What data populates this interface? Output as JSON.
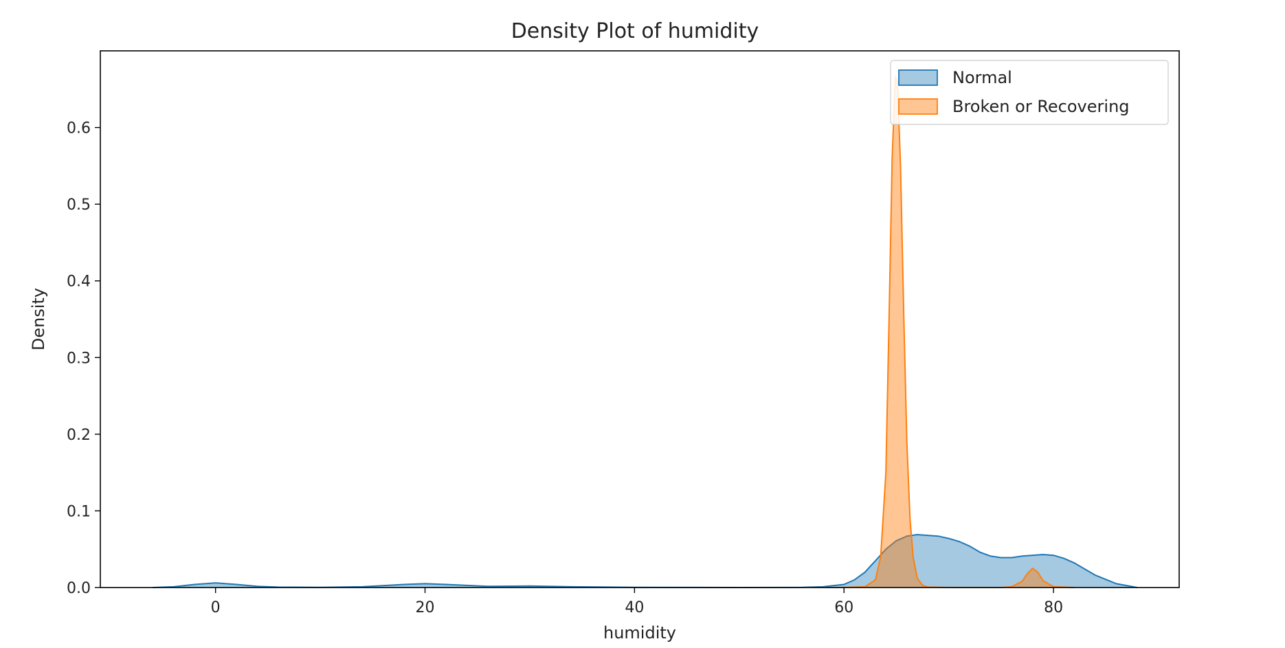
{
  "chart_data": {
    "type": "area",
    "title": "Density Plot of humidity",
    "xlabel": "humidity",
    "ylabel": "Density",
    "xlim": [
      -11,
      92
    ],
    "ylim": [
      0,
      0.7
    ],
    "xticks": [
      0,
      20,
      40,
      60,
      80
    ],
    "yticks": [
      0.0,
      0.1,
      0.2,
      0.3,
      0.4,
      0.5,
      0.6
    ],
    "ytick_labels": [
      "0.0",
      "0.1",
      "0.2",
      "0.3",
      "0.4",
      "0.5",
      "0.6"
    ],
    "grid": false,
    "legend_position": "top-right",
    "series": [
      {
        "name": "Normal",
        "color": "#1f77b4",
        "x": [
          -6,
          -4,
          -2,
          0,
          2,
          4,
          6,
          10,
          14,
          18,
          20,
          22,
          26,
          30,
          34,
          40,
          50,
          56,
          58,
          60,
          61,
          62,
          63,
          64,
          65,
          66,
          67,
          68,
          69,
          70,
          71,
          72,
          73,
          74,
          75,
          76,
          77,
          78,
          79,
          80,
          81,
          82,
          83,
          84,
          86,
          88
        ],
        "y": [
          0.0,
          0.001,
          0.004,
          0.006,
          0.004,
          0.0015,
          0.0005,
          0.0003,
          0.001,
          0.004,
          0.005,
          0.004,
          0.0015,
          0.002,
          0.001,
          0.0003,
          0.0,
          0.0002,
          0.001,
          0.004,
          0.01,
          0.02,
          0.035,
          0.05,
          0.061,
          0.067,
          0.069,
          0.068,
          0.067,
          0.064,
          0.06,
          0.054,
          0.046,
          0.041,
          0.039,
          0.039,
          0.041,
          0.042,
          0.043,
          0.042,
          0.038,
          0.032,
          0.024,
          0.016,
          0.005,
          0.0
        ],
        "fill_opacity": 0.4
      },
      {
        "name": "Broken or Recovering",
        "color": "#ff7f0e",
        "x": [
          57,
          60,
          62,
          63,
          63.5,
          64,
          64.3,
          64.6,
          64.9,
          65.1,
          65.4,
          65.7,
          66,
          66.3,
          66.6,
          67,
          67.5,
          68,
          70,
          72,
          75,
          76,
          77,
          77.5,
          78,
          78.5,
          79,
          80,
          82
        ],
        "y": [
          0.0,
          0.0001,
          0.001,
          0.01,
          0.04,
          0.15,
          0.35,
          0.56,
          0.665,
          0.66,
          0.55,
          0.36,
          0.19,
          0.09,
          0.04,
          0.012,
          0.003,
          0.0005,
          0.0,
          0.0,
          0.0,
          0.001,
          0.008,
          0.018,
          0.025,
          0.02,
          0.009,
          0.001,
          0.0
        ],
        "fill_opacity": 0.45
      }
    ]
  }
}
